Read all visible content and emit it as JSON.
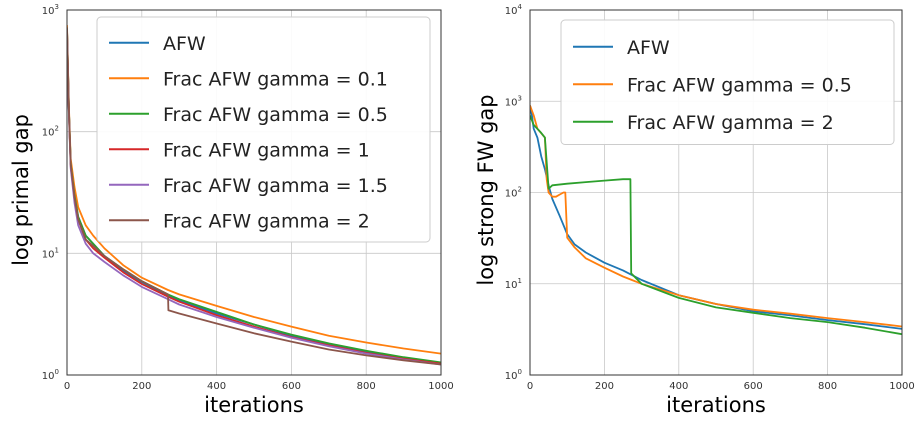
{
  "chart_data": [
    {
      "type": "line",
      "xlabel": "iterations",
      "ylabel": "log primal gap",
      "xlim": [
        0,
        1000
      ],
      "ylim": [
        1,
        1000
      ],
      "yscale": "log",
      "xticks": [
        "0",
        "200",
        "400",
        "600",
        "800",
        "1000"
      ],
      "yticks": [
        {
          "base": "10",
          "exp": "0"
        },
        {
          "base": "10",
          "exp": "1"
        },
        {
          "base": "10",
          "exp": "2"
        },
        {
          "base": "10",
          "exp": "3"
        }
      ],
      "grid": true,
      "legend_position": "upper-right",
      "series": [
        {
          "name": "AFW",
          "color": "#1f77b4",
          "x": [
            0,
            5,
            10,
            20,
            30,
            50,
            70,
            100,
            150,
            200,
            270,
            300,
            400,
            500,
            600,
            700,
            800,
            900,
            1000
          ],
          "y": [
            700,
            150,
            55,
            30,
            20,
            14,
            12,
            9.5,
            7.2,
            5.8,
            4.5,
            4.1,
            3.2,
            2.6,
            2.1,
            1.8,
            1.55,
            1.38,
            1.25
          ]
        },
        {
          "name": "Frac AFW gamma = 0.1",
          "color": "#ff7f0e",
          "x": [
            0,
            5,
            10,
            20,
            30,
            50,
            70,
            100,
            150,
            200,
            270,
            300,
            400,
            500,
            600,
            700,
            800,
            900,
            1000
          ],
          "y": [
            750,
            160,
            60,
            35,
            24,
            17,
            14,
            11,
            8,
            6.3,
            5,
            4.6,
            3.7,
            3,
            2.5,
            2.1,
            1.85,
            1.65,
            1.5
          ]
        },
        {
          "name": "Frac AFW gamma = 0.5",
          "color": "#2ca02c",
          "x": [
            0,
            5,
            10,
            20,
            30,
            50,
            70,
            100,
            150,
            200,
            270,
            300,
            400,
            500,
            600,
            700,
            800,
            900,
            1000
          ],
          "y": [
            700,
            150,
            55,
            30,
            20,
            14,
            12,
            9.5,
            7.4,
            5.9,
            4.6,
            4.2,
            3.3,
            2.6,
            2.15,
            1.82,
            1.58,
            1.4,
            1.27
          ]
        },
        {
          "name": "Frac AFW gamma = 1",
          "color": "#d62728",
          "x": [
            0,
            5,
            10,
            20,
            30,
            50,
            70,
            100,
            150,
            200,
            270,
            300,
            400,
            500,
            600,
            700,
            800,
            900,
            1000
          ],
          "y": [
            680,
            145,
            52,
            28,
            19,
            13,
            11,
            9.2,
            7,
            5.6,
            4.4,
            4,
            3.1,
            2.5,
            2.05,
            1.75,
            1.52,
            1.36,
            1.24
          ]
        },
        {
          "name": "Frac AFW gamma = 1.5",
          "color": "#9467bd",
          "x": [
            0,
            5,
            10,
            20,
            30,
            50,
            70,
            100,
            150,
            200,
            270,
            300,
            400,
            500,
            600,
            700,
            800,
            900,
            1000
          ],
          "y": [
            650,
            140,
            50,
            26,
            17,
            12,
            10,
            8.5,
            6.6,
            5.3,
            4.2,
            3.8,
            3,
            2.45,
            2.02,
            1.72,
            1.5,
            1.34,
            1.22
          ]
        },
        {
          "name": "Frac AFW gamma = 2",
          "color": "#8c564b",
          "x": [
            0,
            5,
            10,
            20,
            30,
            50,
            70,
            100,
            150,
            200,
            270,
            271,
            300,
            400,
            500,
            600,
            700,
            800,
            900,
            1000
          ],
          "y": [
            720,
            150,
            54,
            29,
            19,
            13,
            11.5,
            9.5,
            7.4,
            5.9,
            4.6,
            3.4,
            3.2,
            2.65,
            2.2,
            1.88,
            1.62,
            1.45,
            1.32,
            1.22
          ]
        }
      ]
    },
    {
      "type": "line",
      "xlabel": "iterations",
      "ylabel": "log strong FW gap",
      "xlim": [
        0,
        1000
      ],
      "ylim": [
        1,
        10000
      ],
      "yscale": "log",
      "xticks": [
        "0",
        "200",
        "400",
        "600",
        "800",
        "1000"
      ],
      "yticks": [
        {
          "base": "10",
          "exp": "0"
        },
        {
          "base": "10",
          "exp": "1"
        },
        {
          "base": "10",
          "exp": "2"
        },
        {
          "base": "10",
          "exp": "3"
        },
        {
          "base": "10",
          "exp": "4"
        }
      ],
      "grid": true,
      "legend_position": "upper-right",
      "series": [
        {
          "name": "AFW",
          "color": "#1f77b4",
          "x": [
            0,
            5,
            10,
            20,
            30,
            40,
            50,
            60,
            80,
            100,
            120,
            150,
            200,
            250,
            300,
            400,
            500,
            600,
            700,
            800,
            900,
            1000
          ],
          "y": [
            900,
            700,
            500,
            400,
            250,
            180,
            120,
            85,
            55,
            35,
            27,
            22,
            17,
            14,
            11,
            7.5,
            6,
            5,
            4.5,
            4,
            3.6,
            3.2
          ]
        },
        {
          "name": "Frac AFW gamma = 0.5",
          "color": "#ff7f0e",
          "x": [
            0,
            10,
            20,
            40,
            45,
            50,
            60,
            70,
            80,
            90,
            95,
            100,
            120,
            150,
            200,
            250,
            300,
            400,
            500,
            600,
            700,
            800,
            900,
            1000
          ],
          "y": [
            900,
            700,
            500,
            400,
            140,
            100,
            90,
            90,
            95,
            100,
            100,
            32,
            25,
            19,
            15,
            12,
            10,
            7.5,
            6,
            5.2,
            4.7,
            4.2,
            3.8,
            3.4
          ]
        },
        {
          "name": "Frac AFW gamma = 2",
          "color": "#2ca02c",
          "x": [
            0,
            10,
            30,
            40,
            50,
            55,
            60,
            100,
            150,
            200,
            250,
            270,
            272,
            300,
            400,
            500,
            600,
            700,
            800,
            900,
            1000
          ],
          "y": [
            700,
            550,
            450,
            400,
            110,
            115,
            120,
            125,
            130,
            135,
            140,
            140,
            13,
            10,
            7,
            5.5,
            4.8,
            4.2,
            3.8,
            3.3,
            2.8
          ]
        }
      ]
    }
  ]
}
